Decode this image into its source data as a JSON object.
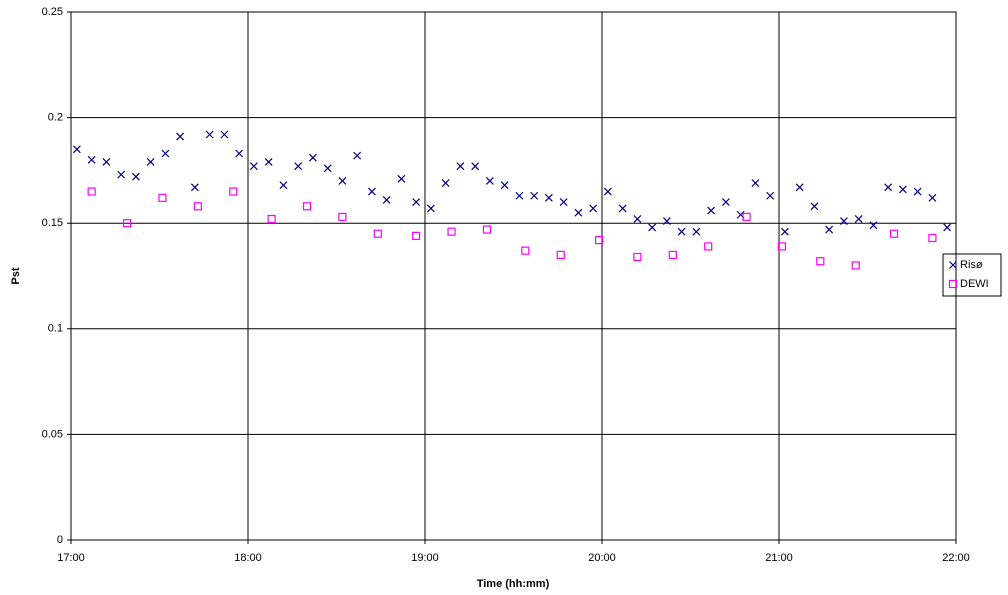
{
  "chart_data": {
    "type": "scatter",
    "x_label": "Time (hh:mm)",
    "y_label": "Pst",
    "xlim": [
      1020,
      1320
    ],
    "xticks": [
      {
        "value": 1020,
        "label": "17:00"
      },
      {
        "value": 1080,
        "label": "18:00"
      },
      {
        "value": 1140,
        "label": "19:00"
      },
      {
        "value": 1200,
        "label": "20:00"
      },
      {
        "value": 1260,
        "label": "21:00"
      },
      {
        "value": 1320,
        "label": "22:00"
      }
    ],
    "ylim": [
      0,
      0.25
    ],
    "yticks": [
      0,
      0.05,
      0.1,
      0.15,
      0.2,
      0.25
    ],
    "grid": true,
    "legend": "right",
    "series": [
      {
        "name": "Risø",
        "color": "#000080",
        "marker": "x",
        "x": [
          1022,
          1027,
          1032,
          1037,
          1042,
          1047,
          1052,
          1057,
          1062,
          1067,
          1072,
          1077,
          1082,
          1087,
          1092,
          1097,
          1102,
          1107,
          1112,
          1117,
          1122,
          1127,
          1132,
          1137,
          1142,
          1147,
          1152,
          1157,
          1162,
          1167,
          1172,
          1177,
          1182,
          1187,
          1192,
          1197,
          1202,
          1207,
          1212,
          1217,
          1222,
          1227,
          1232,
          1237,
          1242,
          1247,
          1252,
          1257,
          1262,
          1267,
          1272,
          1277,
          1282,
          1287,
          1292,
          1297,
          1302,
          1307,
          1312,
          1317
        ],
        "values": [
          0.185,
          0.18,
          0.179,
          0.173,
          0.172,
          0.179,
          0.183,
          0.191,
          0.167,
          0.192,
          0.192,
          0.183,
          0.177,
          0.179,
          0.168,
          0.177,
          0.181,
          0.176,
          0.17,
          0.182,
          0.165,
          0.161,
          0.171,
          0.16,
          0.157,
          0.169,
          0.177,
          0.177,
          0.17,
          0.168,
          0.163,
          0.163,
          0.162,
          0.16,
          0.155,
          0.157,
          0.165,
          0.157,
          0.152,
          0.148,
          0.151,
          0.146,
          0.146,
          0.156,
          0.16,
          0.154,
          0.169,
          0.163,
          0.146,
          0.167,
          0.158,
          0.147,
          0.151,
          0.152,
          0.149,
          0.167,
          0.166,
          0.165,
          0.162,
          0.148
        ]
      },
      {
        "name": "DEWI",
        "color": "#ff00ff",
        "marker": "square",
        "x": [
          1027,
          1039,
          1051,
          1063,
          1075,
          1088,
          1100,
          1112,
          1124,
          1137,
          1149,
          1161,
          1174,
          1186,
          1199,
          1212,
          1224,
          1236,
          1249,
          1261,
          1274,
          1286,
          1299,
          1312
        ],
        "values": [
          0.165,
          0.15,
          0.162,
          0.158,
          0.165,
          0.152,
          0.158,
          0.153,
          0.145,
          0.144,
          0.146,
          0.147,
          0.137,
          0.135,
          0.142,
          0.134,
          0.135,
          0.139,
          0.153,
          0.139,
          0.132,
          0.13,
          0.145,
          0.143
        ]
      }
    ]
  }
}
